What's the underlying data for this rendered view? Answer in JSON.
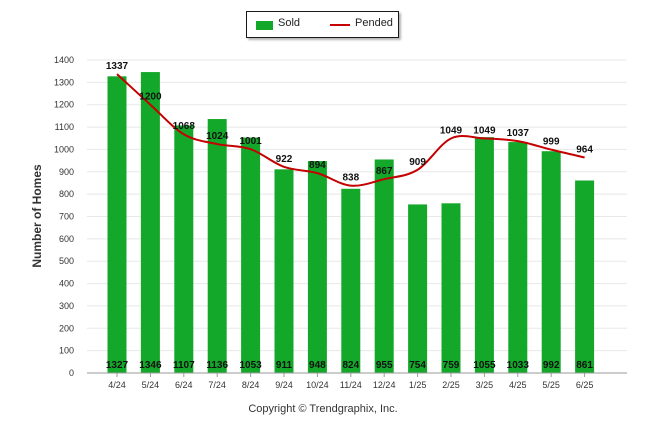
{
  "legend": {
    "sold_label": "Sold",
    "pended_label": "Pended"
  },
  "footer": {
    "copyright": "Copyright © Trendgraphix, Inc."
  },
  "colors": {
    "sold": "#14a82a",
    "pended": "#c40000",
    "grid": "#e8e8e8",
    "axis": "#9a9a9a"
  },
  "chart_data": {
    "type": "bar",
    "ylabel": "Number of Homes",
    "ylim": [
      0,
      1400
    ],
    "yticks": [
      0,
      100,
      200,
      300,
      400,
      500,
      600,
      700,
      800,
      900,
      1000,
      1100,
      1200,
      1300,
      1400
    ],
    "grid": true,
    "legend_position": "top-center",
    "categories": [
      "4/24",
      "5/24",
      "6/24",
      "7/24",
      "8/24",
      "9/24",
      "10/24",
      "11/24",
      "12/24",
      "1/25",
      "2/25",
      "3/25",
      "4/25",
      "5/25",
      "6/25"
    ],
    "series": [
      {
        "name": "Sold",
        "type": "bar",
        "values": [
          1327,
          1346,
          1107,
          1136,
          1053,
          911,
          948,
          824,
          955,
          754,
          759,
          1055,
          1033,
          992,
          861
        ]
      },
      {
        "name": "Pended",
        "type": "line",
        "values": [
          1337,
          1200,
          1068,
          1024,
          1001,
          922,
          894,
          838,
          867,
          909,
          1049,
          1049,
          1037,
          999,
          964
        ]
      }
    ]
  }
}
